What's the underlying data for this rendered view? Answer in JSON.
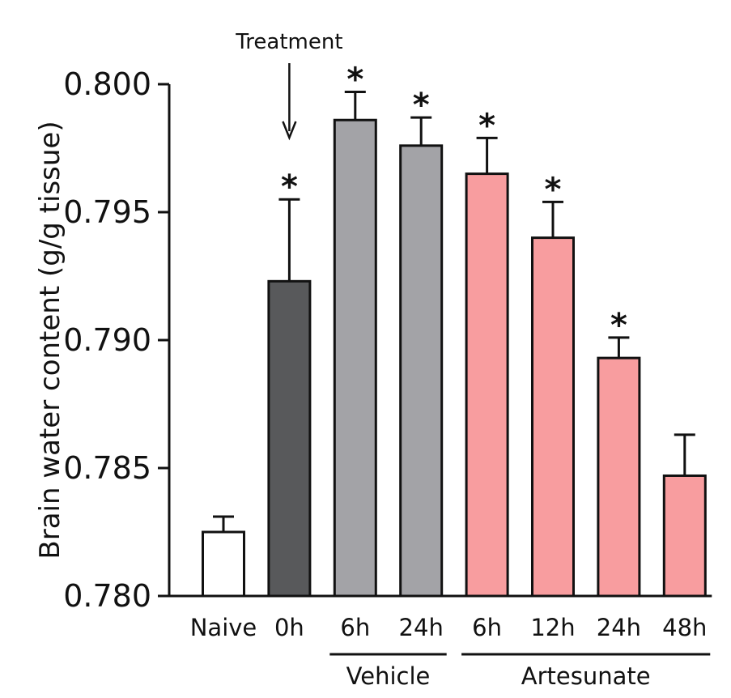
{
  "chart_data": {
    "type": "bar",
    "title": "",
    "xlabel": "",
    "ylabel": "Brain water content (g/g tissue)",
    "ylim": [
      0.78,
      0.8
    ],
    "yticks": [
      "0.780",
      "0.785",
      "0.790",
      "0.795",
      "0.800"
    ],
    "ytick_values": [
      0.78,
      0.785,
      0.79,
      0.795,
      0.8
    ],
    "categories": [
      "Naive",
      "0h",
      "6h",
      "24h",
      "6h",
      "12h",
      "24h",
      "48h"
    ],
    "values": [
      0.7825,
      0.7923,
      0.7986,
      0.7976,
      0.7965,
      0.794,
      0.7893,
      0.7847
    ],
    "errors": [
      0.0006,
      0.0032,
      0.0011,
      0.0011,
      0.0014,
      0.0014,
      0.0008,
      0.0016
    ],
    "significant": [
      false,
      true,
      true,
      true,
      true,
      true,
      true,
      false
    ],
    "significance_marker": "*",
    "bar_colors": [
      "#ffffff",
      "#58595b",
      "#a3a3a7",
      "#a3a3a7",
      "#f89d9f",
      "#f89d9f",
      "#f89d9f",
      "#f89d9f"
    ],
    "groups": [
      {
        "label": "Vehicle",
        "start": 2,
        "end": 3
      },
      {
        "label": "Artesunate",
        "start": 4,
        "end": 7
      }
    ],
    "annotation": {
      "text": "Treatment",
      "target_index": 1
    }
  }
}
